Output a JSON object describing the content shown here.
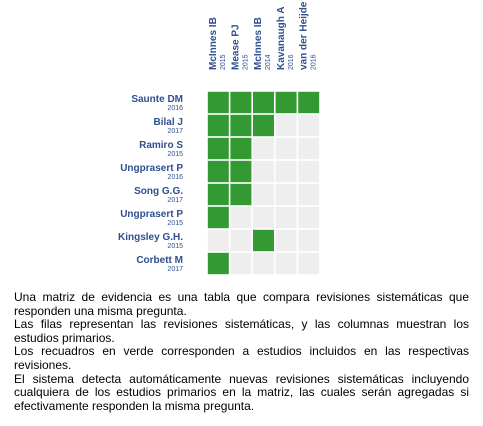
{
  "matrix": {
    "columns": [
      {
        "name": "McInnes IB",
        "year": "2015"
      },
      {
        "name": "Mease PJ",
        "year": "2015"
      },
      {
        "name": "McInnes IB",
        "year": "2014"
      },
      {
        "name": "Kavanaugh A",
        "year": "2016"
      },
      {
        "name": "van der Heijde ...",
        "year": "2016"
      }
    ],
    "rows": [
      {
        "name": "Saunte DM",
        "year": "2016",
        "cells": [
          true,
          true,
          true,
          true,
          true
        ]
      },
      {
        "name": "Bilal J",
        "year": "2017",
        "cells": [
          true,
          true,
          true,
          false,
          false
        ]
      },
      {
        "name": "Ramiro S",
        "year": "2015",
        "cells": [
          true,
          true,
          false,
          false,
          false
        ]
      },
      {
        "name": "Ungprasert P",
        "year": "2016",
        "cells": [
          true,
          true,
          false,
          false,
          false
        ]
      },
      {
        "name": "Song G.G.",
        "year": "2017",
        "cells": [
          true,
          true,
          false,
          false,
          false
        ]
      },
      {
        "name": "Ungprasert P",
        "year": "2015",
        "cells": [
          true,
          false,
          false,
          false,
          false
        ]
      },
      {
        "name": "Kingsley G.H.",
        "year": "2015",
        "cells": [
          false,
          false,
          true,
          false,
          false
        ]
      },
      {
        "name": "Corbett M",
        "year": "2017",
        "cells": [
          true,
          false,
          false,
          false,
          false
        ]
      }
    ],
    "included_color": "#339933",
    "empty_color": "#eeeeee"
  },
  "text": [
    "Una matriz de evidencia es una tabla que compara revisiones sistemáticas que responden una misma pregunta.",
    "Las filas representan las revisiones sistemáticas, y las columnas muestran los estudios primarios.",
    "Los recuadros en verde corresponden a estudios incluidos en las respectivas revisiones.",
    "El sistema detecta automáticamente nuevas revisiones sistemáticas incluyendo cualquiera de los estudios primarios en la matriz, las cuales serán agregadas si efectivamente responden la misma pregunta."
  ]
}
